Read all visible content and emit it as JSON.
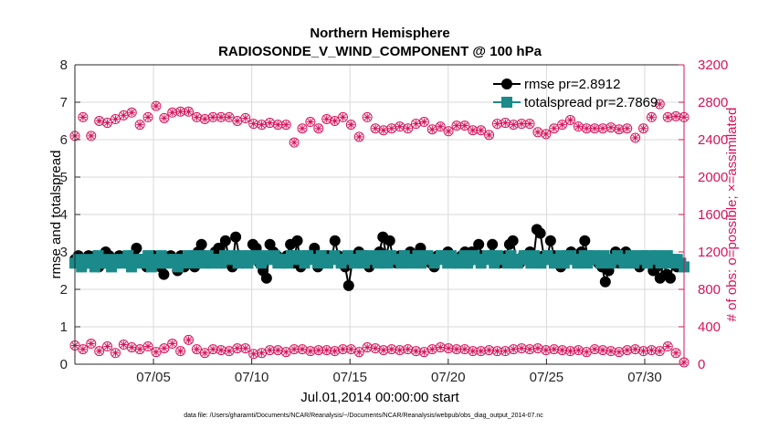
{
  "colors": {
    "rmse": "#000000",
    "totalspread": "#1a8a8a",
    "obs": "#d6135b",
    "axis": "#262626",
    "grid": "#d9d9d9"
  },
  "chart_data": {
    "type": "line",
    "title": [
      "Northern Hemisphere",
      "RADIOSONDE_V_WIND_COMPONENT @ 100 hPa"
    ],
    "xlabel": "Jul.01,2014 00:00:00 start",
    "ylabel_left": "rmse and totalspread",
    "ylabel_right": "# of obs: o=possible; ×=assimilated",
    "xlim": [
      1,
      32
    ],
    "xticks": [
      5,
      10,
      15,
      20,
      25,
      30
    ],
    "xtick_labels": [
      "07/05",
      "07/10",
      "07/15",
      "07/20",
      "07/25",
      "07/30"
    ],
    "ylim_left": [
      0,
      8
    ],
    "yticks_left": [
      0,
      1,
      2,
      3,
      4,
      5,
      6,
      7,
      8
    ],
    "ytick_labels_left": [
      "0",
      "1",
      "2",
      "3",
      "4",
      "5",
      "6",
      "7",
      "8"
    ],
    "ylim_right": [
      0,
      3200
    ],
    "yticks_right": [
      0,
      400,
      800,
      1200,
      1600,
      2000,
      2400,
      2800,
      3200
    ],
    "ytick_labels_right": [
      "0",
      "400",
      "800",
      "1200",
      "1600",
      "2000",
      "2400",
      "2800",
      "3200"
    ],
    "grid": true,
    "legend_position": "top-right",
    "legend": [
      "rmse pr=2.8912",
      "totalspread pr=2.7869"
    ],
    "footnote": "data file: /Users/gharamti/Documents/NCAR/Reanalysis/~/Documents/NCAR/Reanalysis/webpub/obs_diag_output_2014-07.nc",
    "x_step_days": 0.25,
    "x_start": 1.0,
    "series": [
      {
        "name": "rmse",
        "values": [
          2.8,
          2.9,
          2.8,
          2.7,
          2.9,
          2.8,
          2.9,
          2.6,
          2.8,
          3.0,
          2.9,
          2.8,
          2.7,
          2.9,
          2.8,
          2.7,
          2.9,
          2.9,
          3.1,
          2.8,
          2.7,
          2.6,
          2.8,
          2.9,
          2.8,
          2.6,
          2.4,
          2.8,
          2.9,
          2.7,
          2.5,
          2.9,
          2.6,
          2.7,
          2.9,
          2.6,
          3.0,
          3.2,
          2.9,
          2.8,
          2.9,
          3.0,
          3.1,
          2.7,
          3.3,
          2.8,
          2.6,
          3.4,
          2.9,
          2.7,
          2.9,
          2.8,
          3.2,
          3.1,
          2.7,
          2.5,
          2.3,
          3.2,
          3.0,
          2.9,
          2.8,
          2.7,
          2.9,
          3.2,
          2.7,
          3.3,
          2.6,
          2.9,
          2.9,
          2.9,
          3.1,
          2.6,
          2.9,
          2.9,
          2.9,
          2.8,
          3.3,
          2.9,
          2.8,
          2.6,
          2.1,
          2.7,
          2.9,
          3.0,
          2.8,
          2.9,
          2.6,
          2.8,
          2.8,
          3.0,
          3.4,
          2.9,
          3.3,
          2.8,
          2.7,
          2.9,
          2.9,
          2.8,
          3.0,
          2.9,
          2.9,
          3.1,
          2.9,
          2.8,
          2.7,
          2.6,
          2.9,
          2.9,
          2.8,
          3.0,
          2.8,
          2.7,
          2.8,
          2.9,
          3.0,
          2.7,
          3.0,
          2.9,
          3.2,
          2.9,
          2.8,
          2.9,
          3.2,
          2.8,
          2.7,
          2.8,
          2.9,
          3.2,
          3.3,
          2.8,
          2.7,
          2.9,
          2.9,
          3.0,
          2.8,
          3.6,
          3.5,
          2.9,
          2.8,
          3.3,
          2.9,
          2.7,
          2.6,
          2.9,
          2.9,
          3.0,
          2.9,
          2.8,
          3.0,
          3.3,
          2.8,
          2.9,
          2.8,
          2.7,
          2.6,
          2.2,
          2.5,
          2.8,
          3.0,
          2.7,
          2.8,
          3.0,
          2.9,
          2.8,
          2.7,
          2.6,
          2.9,
          2.9,
          2.8,
          2.5,
          2.6,
          2.3,
          2.7,
          2.4,
          2.3,
          2.8,
          2.6,
          2.6,
          2.6
        ]
      },
      {
        "name": "totalspread",
        "values": [
          2.7,
          2.8,
          2.6,
          2.7,
          2.8,
          2.7,
          2.6,
          2.9,
          2.7,
          2.7,
          2.8,
          2.6,
          2.7,
          2.8,
          2.7,
          2.8,
          2.9,
          2.6,
          2.7,
          2.8,
          2.8,
          2.7,
          2.9,
          2.6,
          2.8,
          2.7,
          2.9,
          2.7,
          2.7,
          2.8,
          2.8,
          2.6,
          2.8,
          2.7,
          2.9,
          2.8,
          2.7,
          2.9,
          2.8,
          2.7,
          2.9,
          2.7,
          2.8,
          2.8,
          2.7,
          2.9,
          2.8,
          2.8,
          2.9,
          2.7,
          2.8,
          2.9,
          2.7,
          2.8,
          2.9,
          2.8,
          2.7,
          2.9,
          2.8,
          2.8,
          2.9,
          2.7,
          2.8,
          2.8,
          2.7,
          2.9,
          2.8,
          2.9,
          2.8,
          2.7,
          2.9,
          2.8,
          2.8,
          2.7,
          2.9,
          2.8,
          2.7,
          2.8,
          2.9,
          2.8,
          2.7,
          2.8,
          2.9,
          2.8,
          2.7,
          2.8,
          2.9,
          2.7,
          2.8,
          2.9,
          2.8,
          2.7,
          2.9,
          2.8,
          2.7,
          2.9,
          2.8,
          2.8,
          2.7,
          2.9,
          2.8,
          2.7,
          2.8,
          2.9,
          2.7,
          2.8,
          2.9,
          2.8,
          2.7,
          2.8,
          2.9,
          2.8,
          2.7,
          2.9,
          2.8,
          2.7,
          2.8,
          2.9,
          2.7,
          2.8,
          2.9,
          2.8,
          2.7,
          2.8,
          2.9,
          2.8,
          2.7,
          2.9,
          2.8,
          2.8,
          2.7,
          2.9,
          2.8,
          2.7,
          2.8,
          2.9,
          2.8,
          2.7,
          2.9,
          2.8,
          2.7,
          2.8,
          2.9,
          2.8,
          2.7,
          2.8,
          2.9,
          2.7,
          2.8,
          2.9,
          2.8,
          2.7,
          2.8,
          2.9,
          2.7,
          2.8,
          2.9,
          2.8,
          2.7,
          2.9,
          2.8,
          2.7,
          2.8,
          2.9,
          2.8,
          2.7,
          2.8,
          2.9,
          2.7,
          2.8,
          2.9,
          2.8,
          2.7,
          2.9,
          2.8,
          2.9,
          2.7,
          2.8,
          2.9,
          2.7,
          2.8,
          2.8,
          2.7,
          2.6
        ]
      }
    ],
    "obs_upper": {
      "name": "obs count (upper)",
      "values": [
        2440,
        2640,
        2440,
        2600,
        2580,
        2620,
        2660,
        2690,
        2560,
        2640,
        2760,
        2630,
        2690,
        2700,
        2700,
        2640,
        2620,
        2640,
        2640,
        2640,
        2600,
        2630,
        2570,
        2560,
        2580,
        2560,
        2560,
        2370,
        2520,
        2590,
        2520,
        2620,
        2600,
        2640,
        2560,
        2430,
        2640,
        2520,
        2500,
        2520,
        2540,
        2520,
        2570,
        2590,
        2510,
        2540,
        2490,
        2550,
        2550,
        2500,
        2500,
        2450,
        2570,
        2580,
        2560,
        2570,
        2570,
        2480,
        2460,
        2520,
        2560,
        2610,
        2540,
        2520,
        2520,
        2520,
        2530,
        2510,
        2520,
        2420,
        2520,
        2640,
        2780,
        2640,
        2650,
        2640
      ]
    },
    "obs_lower": {
      "name": "obs count (lower)",
      "values": [
        200,
        160,
        220,
        140,
        190,
        120,
        210,
        180,
        160,
        190,
        130,
        170,
        220,
        140,
        260,
        160,
        120,
        160,
        150,
        140,
        170,
        170,
        110,
        120,
        150,
        150,
        130,
        160,
        160,
        140,
        150,
        150,
        140,
        160,
        160,
        130,
        180,
        170,
        150,
        160,
        150,
        160,
        140,
        130,
        160,
        180,
        170,
        160,
        160,
        140,
        140,
        150,
        140,
        140,
        160,
        170,
        160,
        170,
        150,
        160,
        150,
        140,
        150,
        130,
        160,
        150,
        140,
        130,
        150,
        160,
        140,
        150,
        140,
        190,
        120,
        20
      ]
    }
  }
}
